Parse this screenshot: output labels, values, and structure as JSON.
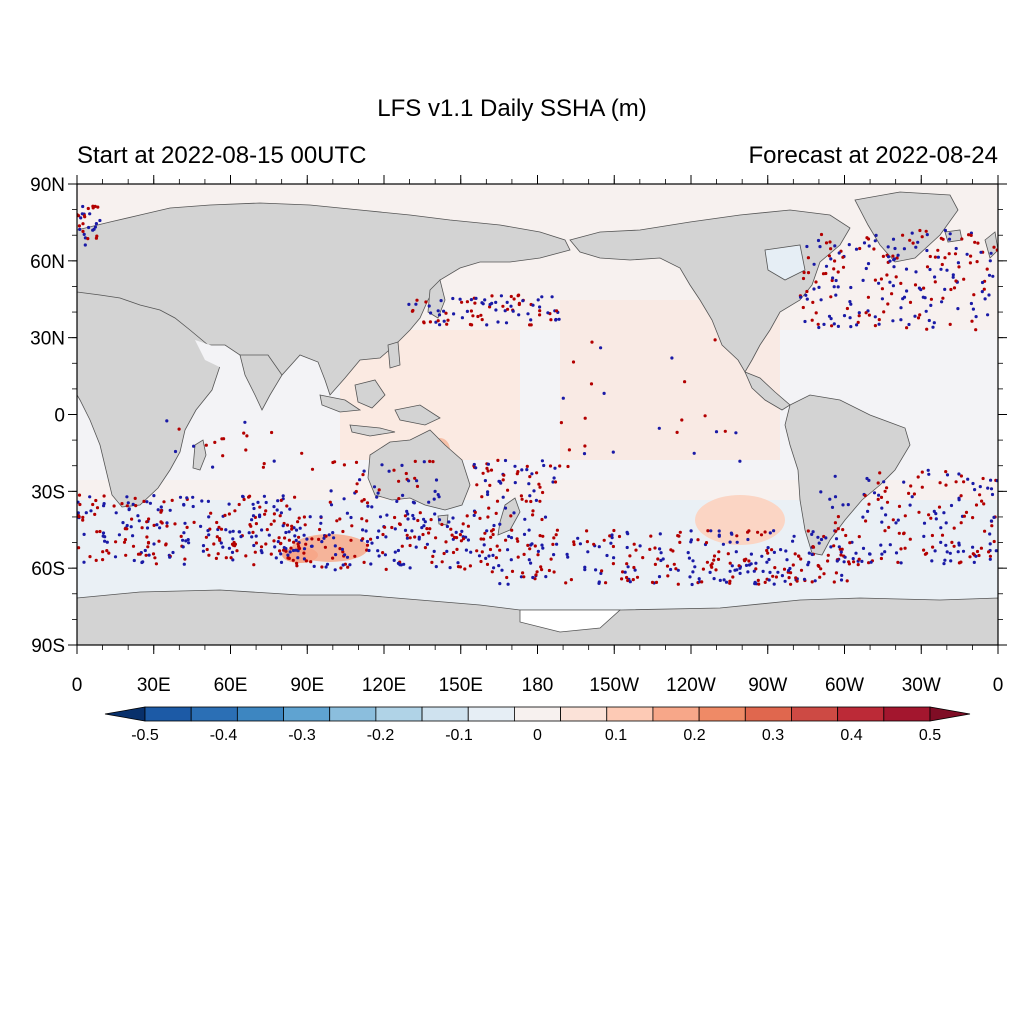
{
  "title": "LFS v1.1 Daily SSHA (m)",
  "left_label": "Start at 2022-08-15 00UTC",
  "right_label": "Forecast at 2022-08-24",
  "map": {
    "projection": "cylindrical-equidistant",
    "center_longitude": 180,
    "lon_range": [
      0,
      360
    ],
    "lat_range": [
      -90,
      90
    ],
    "land_color": "#d3d3d3",
    "ocean_base_color": "#f6f4f4",
    "coastline_color": "#555555",
    "lat_tick_labels": [
      "90N",
      "60N",
      "30N",
      "0",
      "30S",
      "60S",
      "90S"
    ],
    "lon_tick_labels": [
      "0",
      "30E",
      "60E",
      "90E",
      "120E",
      "150E",
      "180",
      "150W",
      "120W",
      "90W",
      "60W",
      "30W",
      "0"
    ]
  },
  "colorbar": {
    "labels": [
      "-0.5",
      "-0.4",
      "-0.3",
      "-0.2",
      "-0.1",
      "0",
      "0.1",
      "0.2",
      "0.3",
      "0.4",
      "0.5"
    ],
    "colors": [
      "#08306b",
      "#1c5aa6",
      "#2b6fb5",
      "#3d86c1",
      "#5fa3d1",
      "#8bbedd",
      "#b0d3e7",
      "#cfe2ef",
      "#e6eef5",
      "#f7f1ef",
      "#fbe2d8",
      "#fdcab5",
      "#f7a789",
      "#ef8a66",
      "#e0674e",
      "#cd4a44",
      "#bc2a37",
      "#a3162e",
      "#7f0d25"
    ]
  },
  "observations": {
    "description_colors": {
      "positive": "#b30000",
      "negative": "#1a1aa6"
    }
  }
}
